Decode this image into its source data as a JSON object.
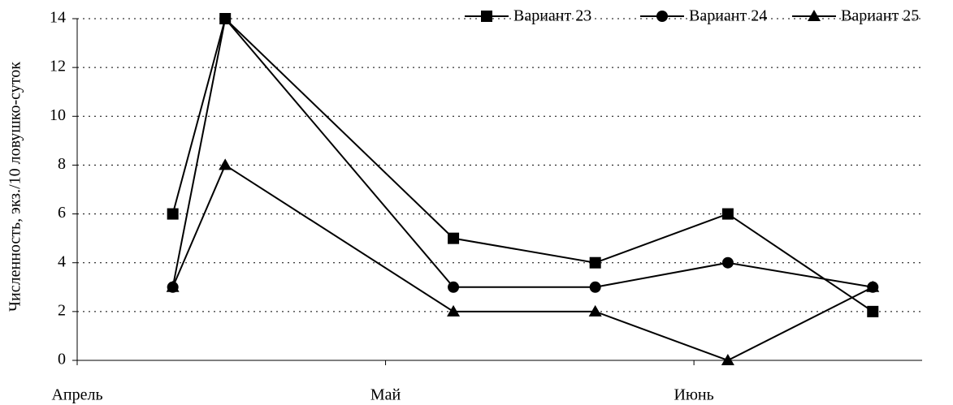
{
  "chart_data": {
    "type": "line",
    "y_label": "Численность, экз./10 ловушко-суток",
    "x": [
      0.31,
      0.48,
      1.22,
      1.68,
      2.11,
      2.58
    ],
    "xlim": [
      0,
      2.74
    ],
    "xticks": [
      {
        "value": 0,
        "label": "Апрель"
      },
      {
        "value": 1,
        "label": "Май"
      },
      {
        "value": 2,
        "label": "Июнь"
      }
    ],
    "ylim": [
      0,
      14
    ],
    "yticks": [
      0,
      2,
      4,
      6,
      8,
      10,
      12,
      14
    ],
    "grid": true,
    "legend": "top-right",
    "series": [
      {
        "name": "Вариант 23",
        "color": "#000000",
        "marker": "square",
        "values": [
          6,
          14,
          5,
          4,
          6,
          2
        ]
      },
      {
        "name": "Вариант 24",
        "color": "#000000",
        "marker": "circle",
        "values": [
          3,
          14,
          3,
          3,
          4,
          3
        ]
      },
      {
        "name": "Вариант 25",
        "color": "#000000",
        "marker": "triangle",
        "values": [
          3,
          8,
          2,
          2,
          0,
          3
        ]
      }
    ]
  }
}
